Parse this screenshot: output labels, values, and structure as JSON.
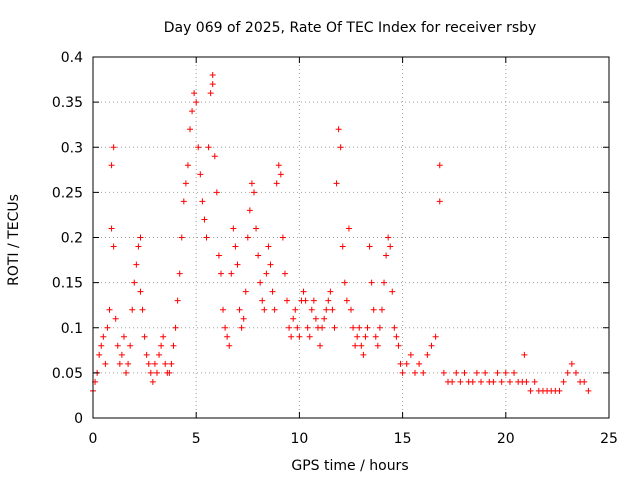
{
  "chart_data": {
    "type": "scatter",
    "title": "Day 069 of 2025, Rate Of TEC Index for receiver rsby",
    "xlabel": "GPS time / hours",
    "ylabel": "ROTI / TECUs",
    "xlim": [
      0,
      25
    ],
    "ylim": [
      0,
      0.4
    ],
    "xticks": [
      0,
      5,
      10,
      15,
      20,
      25
    ],
    "yticks": [
      0,
      0.05,
      0.1,
      0.15,
      0.2,
      0.25,
      0.3,
      0.35,
      0.4
    ],
    "xtick_labels": [
      "0",
      "5",
      "10",
      "15",
      "20",
      "25"
    ],
    "ytick_labels": [
      "0",
      "0.05",
      "0.1",
      "0.15",
      "0.2",
      "0.25",
      "0.3",
      "0.35",
      "0.4"
    ],
    "grid": true,
    "legend": "none",
    "marker": "plus",
    "color": "#ff0000",
    "series": [
      {
        "x": [
          0.0,
          0.1,
          0.2,
          0.3,
          0.4,
          0.5,
          0.6,
          0.7,
          0.8,
          0.9,
          0.9,
          1.0,
          1.0,
          1.1,
          1.2,
          1.3,
          1.4,
          1.5,
          1.6,
          1.7,
          1.8,
          1.9,
          2.0,
          2.1,
          2.2,
          2.3,
          2.3,
          2.4,
          2.5,
          2.6,
          2.7,
          2.8,
          2.9,
          3.0,
          3.1,
          3.2,
          3.3,
          3.4,
          3.5,
          3.6,
          3.7,
          3.8,
          3.9,
          4.0,
          4.1,
          4.2,
          4.3,
          4.4,
          4.5,
          4.6,
          4.7,
          4.8,
          4.9,
          5.0,
          5.1,
          5.2,
          5.3,
          5.4,
          5.5,
          5.6,
          5.7,
          5.8,
          5.8,
          5.9,
          6.0,
          6.1,
          6.2,
          6.3,
          6.4,
          6.5,
          6.6,
          6.7,
          6.8,
          6.9,
          7.0,
          7.1,
          7.2,
          7.3,
          7.4,
          7.5,
          7.6,
          7.7,
          7.8,
          7.9,
          8.0,
          8.1,
          8.2,
          8.3,
          8.4,
          8.5,
          8.6,
          8.7,
          8.8,
          8.9,
          9.0,
          9.1,
          9.2,
          9.3,
          9.4,
          9.5,
          9.6,
          9.7,
          9.8,
          9.9,
          10.0,
          10.1,
          10.2,
          10.3,
          10.4,
          10.5,
          10.6,
          10.7,
          10.8,
          10.9,
          11.0,
          11.1,
          11.2,
          11.3,
          11.4,
          11.5,
          11.6,
          11.7,
          11.8,
          11.9,
          12.0,
          12.1,
          12.2,
          12.3,
          12.4,
          12.5,
          12.6,
          12.7,
          12.8,
          12.9,
          13.0,
          13.1,
          13.2,
          13.3,
          13.4,
          13.5,
          13.6,
          13.7,
          13.8,
          13.9,
          14.0,
          14.1,
          14.2,
          14.3,
          14.4,
          14.5,
          14.6,
          14.7,
          14.8,
          14.9,
          15.0,
          15.2,
          15.4,
          15.6,
          15.8,
          16.0,
          16.2,
          16.4,
          16.6,
          16.8,
          16.8,
          17.0,
          17.2,
          17.4,
          17.6,
          17.8,
          18.0,
          18.2,
          18.4,
          18.6,
          18.8,
          19.0,
          19.2,
          19.4,
          19.6,
          19.8,
          20.0,
          20.2,
          20.4,
          20.6,
          20.8,
          20.9,
          21.0,
          21.2,
          21.4,
          21.6,
          21.8,
          22.0,
          22.2,
          22.4,
          22.6,
          22.8,
          23.0,
          23.2,
          23.4,
          23.6,
          23.8,
          24.0
        ],
        "y": [
          0.03,
          0.04,
          0.05,
          0.07,
          0.08,
          0.09,
          0.06,
          0.1,
          0.12,
          0.21,
          0.28,
          0.3,
          0.19,
          0.11,
          0.08,
          0.06,
          0.07,
          0.09,
          0.05,
          0.06,
          0.08,
          0.12,
          0.15,
          0.17,
          0.19,
          0.2,
          0.14,
          0.12,
          0.09,
          0.07,
          0.06,
          0.05,
          0.04,
          0.06,
          0.05,
          0.07,
          0.08,
          0.09,
          0.06,
          0.05,
          0.05,
          0.06,
          0.08,
          0.1,
          0.13,
          0.16,
          0.2,
          0.24,
          0.26,
          0.28,
          0.32,
          0.34,
          0.36,
          0.35,
          0.3,
          0.27,
          0.24,
          0.22,
          0.2,
          0.3,
          0.36,
          0.38,
          0.37,
          0.29,
          0.25,
          0.18,
          0.16,
          0.12,
          0.1,
          0.09,
          0.08,
          0.16,
          0.21,
          0.19,
          0.17,
          0.12,
          0.1,
          0.11,
          0.14,
          0.2,
          0.23,
          0.26,
          0.25,
          0.21,
          0.18,
          0.15,
          0.13,
          0.12,
          0.16,
          0.19,
          0.17,
          0.14,
          0.12,
          0.26,
          0.28,
          0.27,
          0.2,
          0.16,
          0.13,
          0.1,
          0.09,
          0.11,
          0.12,
          0.1,
          0.09,
          0.13,
          0.14,
          0.13,
          0.1,
          0.09,
          0.12,
          0.13,
          0.11,
          0.1,
          0.08,
          0.1,
          0.11,
          0.12,
          0.13,
          0.14,
          0.12,
          0.1,
          0.26,
          0.32,
          0.3,
          0.19,
          0.15,
          0.13,
          0.21,
          0.12,
          0.1,
          0.08,
          0.09,
          0.1,
          0.08,
          0.07,
          0.09,
          0.1,
          0.19,
          0.15,
          0.12,
          0.09,
          0.08,
          0.1,
          0.12,
          0.15,
          0.18,
          0.2,
          0.19,
          0.14,
          0.1,
          0.09,
          0.08,
          0.06,
          0.05,
          0.06,
          0.07,
          0.05,
          0.06,
          0.05,
          0.07,
          0.08,
          0.09,
          0.28,
          0.24,
          0.05,
          0.04,
          0.04,
          0.05,
          0.04,
          0.05,
          0.04,
          0.04,
          0.05,
          0.04,
          0.05,
          0.04,
          0.04,
          0.05,
          0.04,
          0.05,
          0.04,
          0.05,
          0.04,
          0.04,
          0.07,
          0.04,
          0.03,
          0.04,
          0.03,
          0.03,
          0.03,
          0.03,
          0.03,
          0.03,
          0.04,
          0.05,
          0.06,
          0.05,
          0.04,
          0.04,
          0.03
        ]
      }
    ]
  }
}
